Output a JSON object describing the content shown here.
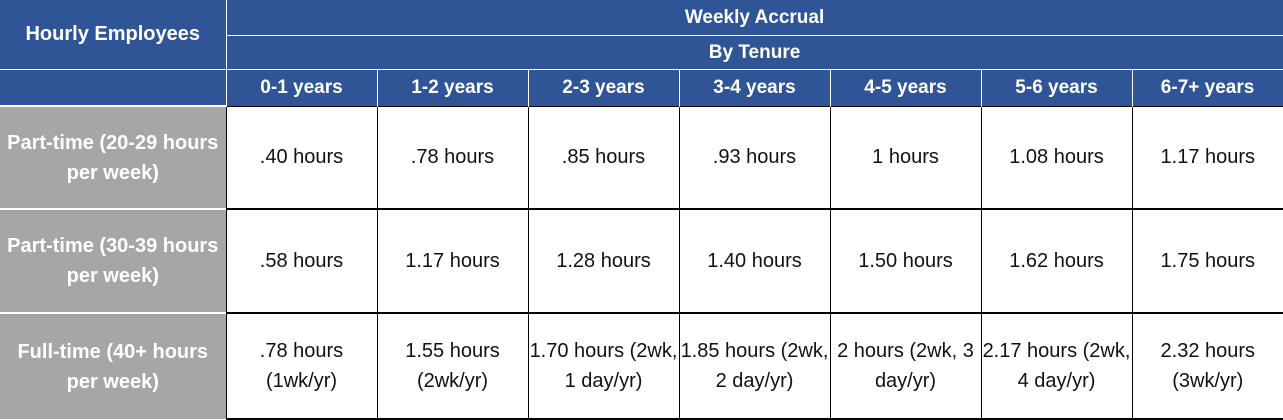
{
  "table": {
    "corner_header": "Hourly Employees",
    "group_header": "Weekly Accrual",
    "sub_header": "By Tenure",
    "tenure_columns": [
      "0-1 years",
      "1-2 years",
      "2-3 years",
      "3-4 years",
      "4-5 years",
      "5-6 years",
      "6-7+ years"
    ],
    "rows": [
      {
        "label": "Part-time (20-29 hours per week)",
        "values": [
          ".40 hours",
          ".78 hours",
          ".85 hours",
          ".93 hours",
          "1 hours",
          "1.08 hours",
          "1.17 hours"
        ]
      },
      {
        "label": "Part-time (30-39 hours per week)",
        "values": [
          ".58 hours",
          "1.17 hours",
          "1.28 hours",
          "1.40 hours",
          "1.50 hours",
          "1.62 hours",
          "1.75 hours"
        ]
      },
      {
        "label": "Full-time (40+ hours per week)",
        "values": [
          ".78 hours (1wk/yr)",
          "1.55 hours (2wk/yr)",
          "1.70 hours (2wk, 1 day/yr)",
          "1.85 hours (2wk, 2 day/yr)",
          "2 hours (2wk, 3 day/yr)",
          "2.17 hours (2wk, 4 day/yr)",
          "2.32 hours (3wk/yr)"
        ]
      }
    ]
  },
  "colors": {
    "header_blue": "#2f5597",
    "label_gray": "#a6a6a6",
    "header_text": "#ffffff",
    "body_text": "#111111"
  }
}
